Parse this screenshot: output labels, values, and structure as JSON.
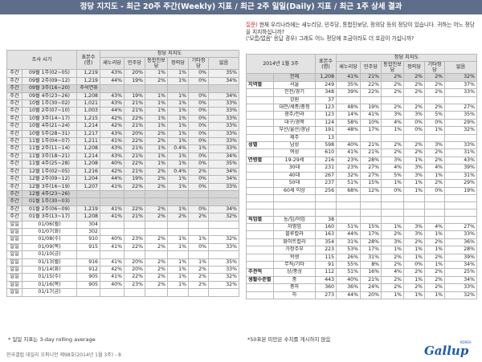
{
  "title": "정당 지지도 - 최근 20주 주간(Weekly) 지표 / 최근 2주 일일(Daily) 지표 / 최근 1주 상세 결과",
  "left": {
    "h_period": "조사 시기",
    "h_n": "표본수(명)",
    "h_group": "정당 지지도",
    "h_cols": [
      "새누리당",
      "민주당",
      "통합진보당",
      "정의당",
      "기타정당",
      "없음"
    ],
    "rows": [
      {
        "a": "주간",
        "b": "09월 1주(02~05)",
        "n": "1,219",
        "v": [
          "43%",
          "20%",
          "1%",
          "1%",
          "0%",
          "35%"
        ],
        "hl": false
      },
      {
        "a": "주간",
        "b": "09월 2주(09~12)",
        "n": "1,219",
        "v": [
          "44%",
          "19%",
          "2%",
          "1%",
          "0%",
          "34%"
        ],
        "hl": false
      },
      {
        "a": "주간",
        "b": "09월 3주(16~20)",
        "n": "추석연휴",
        "v": [
          "",
          "",
          "",
          "",
          "",
          ""
        ],
        "hl": true
      },
      {
        "a": "주간",
        "b": "09월 4주(23~26)",
        "n": "1,208",
        "v": [
          "43%",
          "19%",
          "1%",
          "1%",
          "0%",
          "34%"
        ],
        "hl": false
      },
      {
        "a": "주간",
        "b": "10월 1주(30~02)",
        "n": "1,021",
        "v": [
          "43%",
          "21%",
          "1%",
          "1%",
          "0%",
          "33%"
        ],
        "hl": false
      },
      {
        "a": "주간",
        "b": "10월 2주(07~10)",
        "n": "1,003",
        "v": [
          "44%",
          "21%",
          "1%",
          "1%",
          "0%",
          "33%"
        ],
        "hl": false
      },
      {
        "a": "주간",
        "b": "10월 3주(14~17)",
        "n": "1,215",
        "v": [
          "42%",
          "22%",
          "1%",
          "1%",
          "0%",
          "33%"
        ],
        "hl": false
      },
      {
        "a": "주간",
        "b": "10월 4주(21~24)",
        "n": "1,214",
        "v": [
          "42%",
          "21%",
          "1%",
          "1%",
          "0%",
          "33%"
        ],
        "hl": false
      },
      {
        "a": "주간",
        "b": "10월 5주(28~31)",
        "n": "1,217",
        "v": [
          "43%",
          "20%",
          "2%",
          "1%",
          "0%",
          "33%"
        ],
        "hl": false
      },
      {
        "a": "주간",
        "b": "11월 1주(04~07)",
        "n": "1,211",
        "v": [
          "41%",
          "22%",
          "2%",
          "1%",
          "0%",
          "33%"
        ],
        "hl": false
      },
      {
        "a": "주간",
        "b": "11월 2주(11~14)",
        "n": "1,208",
        "v": [
          "43%",
          "21%",
          "1%",
          "0.4%",
          "1%",
          "33%"
        ],
        "hl": false
      },
      {
        "a": "주간",
        "b": "11월 3주(18~21)",
        "n": "1,214",
        "v": [
          "43%",
          "21%",
          "1%",
          "1%",
          "0%",
          "34%"
        ],
        "hl": false
      },
      {
        "a": "주간",
        "b": "11월 4주(25~28)",
        "n": "1,208",
        "v": [
          "40%",
          "22%",
          "1%",
          "1%",
          "0%",
          "35%"
        ],
        "hl": false
      },
      {
        "a": "주간",
        "b": "12월 1주(02~05)",
        "n": "1,216",
        "v": [
          "42%",
          "21%",
          "2%",
          "0.4%",
          "2%",
          "34%"
        ],
        "hl": false
      },
      {
        "a": "주간",
        "b": "12월 2주(09~12)",
        "n": "1,204",
        "v": [
          "44%",
          "19%",
          "2%",
          "1%",
          "0%",
          "34%"
        ],
        "hl": false
      },
      {
        "a": "주간",
        "b": "12월 3주(16~19)",
        "n": "1,207",
        "v": [
          "41%",
          "22%",
          "2%",
          "1%",
          "0%",
          "33%"
        ],
        "hl": false
      },
      {
        "a": "주간",
        "b": "12월 4주(23~26)",
        "n": "",
        "v": [
          "",
          "",
          "",
          "",
          "",
          ""
        ],
        "hl": true
      },
      {
        "a": "주간",
        "b": "01월 1주(30~03)",
        "n": "",
        "v": [
          "",
          "",
          "",
          "",
          "",
          ""
        ],
        "hl": true
      },
      {
        "a": "주간",
        "b": "01월 2주(06~09)",
        "n": "1,219",
        "v": [
          "41%",
          "22%",
          "2%",
          "1%",
          "0%",
          "34%"
        ],
        "hl": false
      },
      {
        "a": "주간",
        "b": "01월 3주(13~17)",
        "n": "1,208",
        "v": [
          "41%",
          "21%",
          "2%",
          "2%",
          "2%",
          "32%"
        ],
        "hl": false
      }
    ],
    "daily": [
      {
        "a": "일일",
        "b": "01/06(월)",
        "n": "304",
        "v": [
          "",
          "",
          "",
          "",
          "",
          ""
        ]
      },
      {
        "a": "일일",
        "b": "01/07(화)",
        "n": "302",
        "v": [
          "",
          "",
          "",
          "",
          "",
          ""
        ]
      },
      {
        "a": "일일",
        "b": "01/08(수)",
        "n": "910",
        "v": [
          "40%",
          "23%",
          "2%",
          "1%",
          "1%",
          "32%"
        ]
      },
      {
        "a": "일일",
        "b": "01/09(목)",
        "n": "915",
        "v": [
          "41%",
          "22%",
          "2%",
          "1%",
          "0%",
          "33%"
        ]
      },
      {
        "a": "일일",
        "b": "01/10(금)",
        "n": "",
        "v": [
          "",
          "",
          "",
          "",
          "",
          ""
        ]
      },
      {
        "a": "일일",
        "b": "01/13(월)",
        "n": "916",
        "v": [
          "41%",
          "20%",
          "2%",
          "1%",
          "1%",
          "35%"
        ]
      },
      {
        "a": "일일",
        "b": "01/14(화)",
        "n": "912",
        "v": [
          "42%",
          "20%",
          "2%",
          "1%",
          "2%",
          "33%"
        ]
      },
      {
        "a": "일일",
        "b": "01/15(수)",
        "n": "905",
        "v": [
          "41%",
          "22%",
          "2%",
          "1%",
          "2%",
          "32%"
        ]
      },
      {
        "a": "일일",
        "b": "01/16(목)",
        "n": "905",
        "v": [
          "40%",
          "23%",
          "2%",
          "1%",
          "2%",
          "32%"
        ]
      },
      {
        "a": "일일",
        "b": "01/17(금)",
        "n": "",
        "v": [
          "",
          "",
          "",
          "",
          "",
          ""
        ]
      }
    ],
    "note": "* 일일 지표는 3-day rolling average"
  },
  "right": {
    "question_tag": "질문)",
    "question_text": "현재 우리나라에는 새누리당, 민주당, 통합진보당, 정의당 등의 정당이 있습니다. 귀하는 어느 정당을 지지하십니까?",
    "question_text2": "('모름/없음' 응답 경우) 그래도 어느 정당에 조금이라도 더 호감이 가십니까?",
    "h_period": "2014년 1월 3주",
    "h_n": "표본수(명)",
    "h_group": "정당 지지도",
    "h_cols": [
      "새누리당",
      "민주당",
      "통합진보당",
      "정의당",
      "기타정당",
      "없음"
    ],
    "rows": [
      {
        "c": "",
        "s": "전체",
        "n": "1,208",
        "v": [
          "41%",
          "21%",
          "2%",
          "2%",
          "2%",
          "32%"
        ],
        "total": true
      },
      {
        "c": "지역별",
        "s": "서울",
        "n": "249",
        "v": [
          "35%",
          "22%",
          "2%",
          "2%",
          "2%",
          "37%"
        ]
      },
      {
        "c": "",
        "s": "인천/경기",
        "n": "348",
        "v": [
          "39%",
          "22%",
          "2%",
          "2%",
          "2%",
          "33%"
        ]
      },
      {
        "c": "",
        "s": "강원",
        "n": "37",
        "v": [
          "",
          "",
          "",
          "",
          "",
          ""
        ]
      },
      {
        "c": "",
        "s": "대전/세종/충청",
        "n": "123",
        "v": [
          "48%",
          "19%",
          "2%",
          "2%",
          "2%",
          "27%"
        ]
      },
      {
        "c": "",
        "s": "광주/전라",
        "n": "123",
        "v": [
          "14%",
          "41%",
          "3%",
          "3%",
          "5%",
          "35%"
        ]
      },
      {
        "c": "",
        "s": "대구/경북",
        "n": "124",
        "v": [
          "58%",
          "10%",
          "4%",
          "0%",
          "0%",
          "29%"
        ]
      },
      {
        "c": "",
        "s": "부산/울산/경남",
        "n": "191",
        "v": [
          "48%",
          "17%",
          "1%",
          "0%",
          "1%",
          "32%"
        ]
      },
      {
        "c": "",
        "s": "제주",
        "n": "13",
        "v": [
          "",
          "",
          "",
          "",
          "",
          ""
        ]
      },
      {
        "c": "성별",
        "s": "남성",
        "n": "598",
        "v": [
          "40%",
          "21%",
          "2%",
          "2%",
          "3%",
          "33%"
        ]
      },
      {
        "c": "",
        "s": "여성",
        "n": "610",
        "v": [
          "41%",
          "21%",
          "2%",
          "2%",
          "2%",
          "31%"
        ]
      },
      {
        "c": "연령별",
        "s": "19-29세",
        "n": "216",
        "v": [
          "23%",
          "28%",
          "3%",
          "1%",
          "2%",
          "43%"
        ]
      },
      {
        "c": "",
        "s": "30대",
        "n": "231",
        "v": [
          "23%",
          "27%",
          "4%",
          "3%",
          "4%",
          "39%"
        ]
      },
      {
        "c": "",
        "s": "40대",
        "n": "267",
        "v": [
          "32%",
          "27%",
          "5%",
          "3%",
          "1%",
          "31%"
        ]
      },
      {
        "c": "",
        "s": "50대",
        "n": "237",
        "v": [
          "51%",
          "15%",
          "1%",
          "1%",
          "2%",
          "29%"
        ]
      },
      {
        "c": "",
        "s": "60세 이상",
        "n": "256",
        "v": [
          "68%",
          "12%",
          "0%",
          "1%",
          "0%",
          "19%"
        ]
      },
      {
        "c": "",
        "s": "",
        "n": "",
        "v": [
          "",
          "",
          "",
          "",
          "",
          ""
        ]
      },
      {
        "c": "",
        "s": "",
        "n": "",
        "v": [
          "",
          "",
          "",
          "",
          "",
          ""
        ]
      },
      {
        "c": "",
        "s": "",
        "n": "",
        "v": [
          "",
          "",
          "",
          "",
          "",
          ""
        ]
      },
      {
        "c": "직업별",
        "s": "농/임/어업",
        "n": "38",
        "v": [
          "",
          "",
          "",
          "",
          "",
          ""
        ]
      },
      {
        "c": "",
        "s": "자영업",
        "n": "160",
        "v": [
          "51%",
          "15%",
          "1%",
          "3%",
          "4%",
          "27%"
        ]
      },
      {
        "c": "",
        "s": "블루칼라",
        "s2": "",
        "n": "163",
        "v": [
          "44%",
          "17%",
          "2%",
          "3%",
          "1%",
          "33%"
        ]
      },
      {
        "c": "",
        "s": "화이트칼라",
        "n": "354",
        "v": [
          "31%",
          "28%",
          "3%",
          "2%",
          "2%",
          "36%"
        ]
      },
      {
        "c": "",
        "s": "가정주부",
        "n": "223",
        "v": [
          "53%",
          "17%",
          "1%",
          "1%",
          "1%",
          "28%"
        ]
      },
      {
        "c": "",
        "s": "학생",
        "n": "115",
        "v": [
          "26%",
          "31%",
          "2%",
          "1%",
          "2%",
          "39%"
        ]
      },
      {
        "c": "",
        "s": "무직/기타",
        "n": "91",
        "v": [
          "55%",
          "8%",
          "2%",
          "0%",
          "1%",
          "34%"
        ]
      },
      {
        "c": "주관적",
        "s": "상/중상",
        "n": "112",
        "v": [
          "51%",
          "16%",
          "4%",
          "2%",
          "2%",
          "25%"
        ]
      },
      {
        "c": "생활수준별",
        "s": "중",
        "n": "443",
        "v": [
          "40%",
          "21%",
          "2%",
          "1%",
          "2%",
          "34%"
        ]
      },
      {
        "c": "",
        "s": "중하",
        "n": "360",
        "v": [
          "36%",
          "24%",
          "2%",
          "2%",
          "2%",
          "33%"
        ]
      },
      {
        "c": "",
        "s": "하",
        "n": "273",
        "v": [
          "44%",
          "20%",
          "1%",
          "1%",
          "1%",
          "32%"
        ]
      }
    ],
    "note": "*50표본 미만은 수치를 게시하지 않음"
  },
  "footer": "한국갤럽 데일리 오피니언 제98호(2014년 1월 3주) - 8",
  "logo": "Gallup",
  "logo_sup": "KOREA"
}
